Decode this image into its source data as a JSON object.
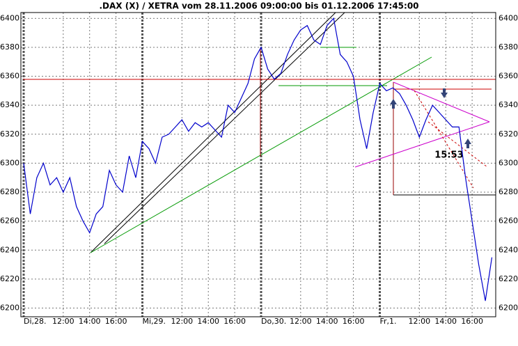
{
  "chart_data": {
    "type": "line",
    "title": ".DAX (X) / XETRA vom 28.11.2006 09:00:00 bis 01.12.2006 17:45:00",
    "annotation": "15:53",
    "categories": [
      "Di,28.",
      null,
      null,
      null,
      null,
      null,
      "12:00",
      null,
      null,
      null,
      "14:00",
      null,
      null,
      null,
      "16:00",
      null,
      null,
      null,
      "Mi,29.",
      null,
      null,
      null,
      null,
      null,
      "12:00",
      null,
      null,
      null,
      "14:00",
      null,
      null,
      null,
      "16:00",
      null,
      null,
      null,
      "Do,30.",
      null,
      null,
      null,
      null,
      null,
      "12:00",
      null,
      null,
      null,
      "14:00",
      null,
      null,
      null,
      "16:00",
      null,
      null,
      null,
      "Fr,1.",
      null,
      null,
      null,
      null,
      null,
      "12:00",
      null,
      null,
      null,
      "14:00",
      null,
      null,
      null,
      "16:00",
      null,
      null,
      null
    ],
    "series": [
      {
        "name": ".DAX",
        "color": "#0000cc",
        "values": [
          6300,
          6265,
          6290,
          6300,
          6285,
          6290,
          6280,
          6290,
          6270,
          6260,
          6252,
          6265,
          6270,
          6295,
          6285,
          6280,
          6305,
          6290,
          6315,
          6310,
          6300,
          6318,
          6320,
          6325,
          6330,
          6322,
          6328,
          6325,
          6328,
          6323,
          6318,
          6340,
          6335,
          6345,
          6355,
          6372,
          6380,
          6365,
          6358,
          6362,
          6375,
          6385,
          6392,
          6395,
          6385,
          6382,
          6395,
          6400,
          6375,
          6370,
          6360,
          6330,
          6310,
          6335,
          6355,
          6350,
          6352,
          6348,
          6340,
          6330,
          6318,
          6330,
          6340,
          6335,
          6330,
          6325,
          6325,
          6290,
          6260,
          6230,
          6205,
          6235
        ]
      }
    ],
    "ylim": [
      6194,
      6404
    ],
    "yticks": [
      6200,
      6220,
      6240,
      6260,
      6280,
      6300,
      6320,
      6340,
      6360,
      6380,
      6400
    ],
    "grid": true
  }
}
